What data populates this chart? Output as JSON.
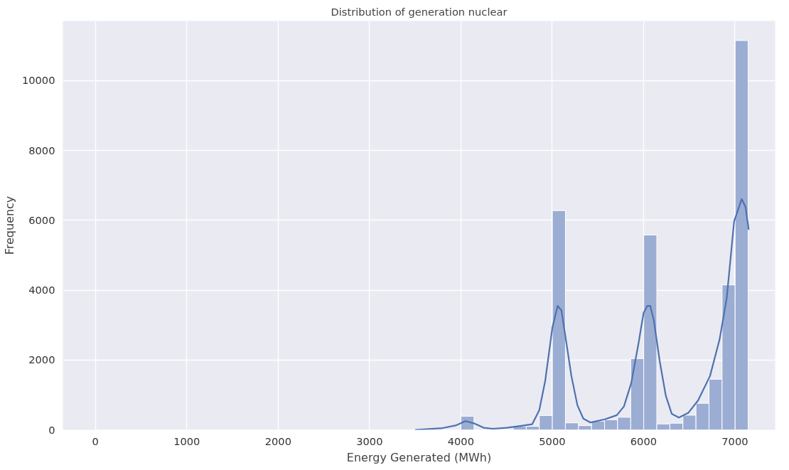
{
  "chart_data": {
    "type": "histogram",
    "title": "Distribution of generation nuclear",
    "xlabel": "Energy Generated (MWh)",
    "ylabel": "Frequency",
    "bins": [
      0,
      142.9,
      285.8,
      428.7,
      571.6,
      714.5,
      857.4,
      1000.3,
      1143.2,
      1286.1,
      1429,
      1571.9,
      1714.8,
      1857.7,
      2000.6,
      2143.5,
      2286.4,
      2429.3,
      2572.2,
      2715.1,
      2858,
      3000.9,
      3143.8,
      3286.7,
      3429.6,
      3572.5,
      3715.4,
      3858.3,
      4001.2,
      4144.1,
      4287,
      4429.9,
      4572.8,
      4715.7,
      4858.6,
      5001.5,
      5144.4,
      5287.3,
      5430.2,
      5573.1,
      5716,
      5858.9,
      6001.8,
      6144.7,
      6287.6,
      6430.5,
      6573.4,
      6716.3,
      6859.2,
      7002.1,
      7145
    ],
    "values": [
      0,
      0,
      0,
      0,
      0,
      0,
      0,
      0,
      0,
      0,
      0,
      0,
      0,
      0,
      0,
      0,
      0,
      0,
      0,
      0,
      0,
      0,
      0,
      0,
      0,
      0,
      0,
      0,
      390,
      0,
      0,
      0,
      100,
      100,
      410,
      6280,
      200,
      120,
      250,
      290,
      360,
      2040,
      5580,
      170,
      190,
      420,
      760,
      1450,
      4150,
      11150
    ],
    "color": "#9cadd3",
    "series": [
      {
        "type": "line",
        "color": "#4c72b0",
        "x": [
          3500,
          3800,
          3950,
          4050,
          4150,
          4250,
          4350,
          4500,
          4650,
          4780,
          4858,
          4923,
          5002,
          5059,
          5101,
          5158,
          5210,
          5276,
          5341,
          5419,
          5576,
          5707,
          5785,
          5864,
          5942,
          6000,
          6041,
          6073,
          6112,
          6177,
          6243,
          6308,
          6387,
          6491,
          6596,
          6727,
          6831,
          6910,
          6991,
          7074,
          7115,
          7151
        ],
        "values": [
          0,
          50,
          130,
          250,
          180,
          60,
          30,
          60,
          110,
          160,
          560,
          1400,
          2930,
          3550,
          3420,
          2440,
          1540,
          700,
          320,
          210,
          300,
          420,
          670,
          1330,
          2440,
          3350,
          3550,
          3550,
          3140,
          1960,
          980,
          460,
          350,
          490,
          840,
          1540,
          2580,
          3770,
          5970,
          6610,
          6390,
          5730
        ]
      }
    ],
    "xlim": [
      -356,
      7440
    ],
    "ylim": [
      0,
      11710
    ],
    "xticks": [
      0,
      1000,
      2000,
      3000,
      4000,
      5000,
      6000,
      7000
    ],
    "yticks": [
      0,
      2000,
      4000,
      6000,
      8000,
      10000
    ],
    "grid": true
  }
}
